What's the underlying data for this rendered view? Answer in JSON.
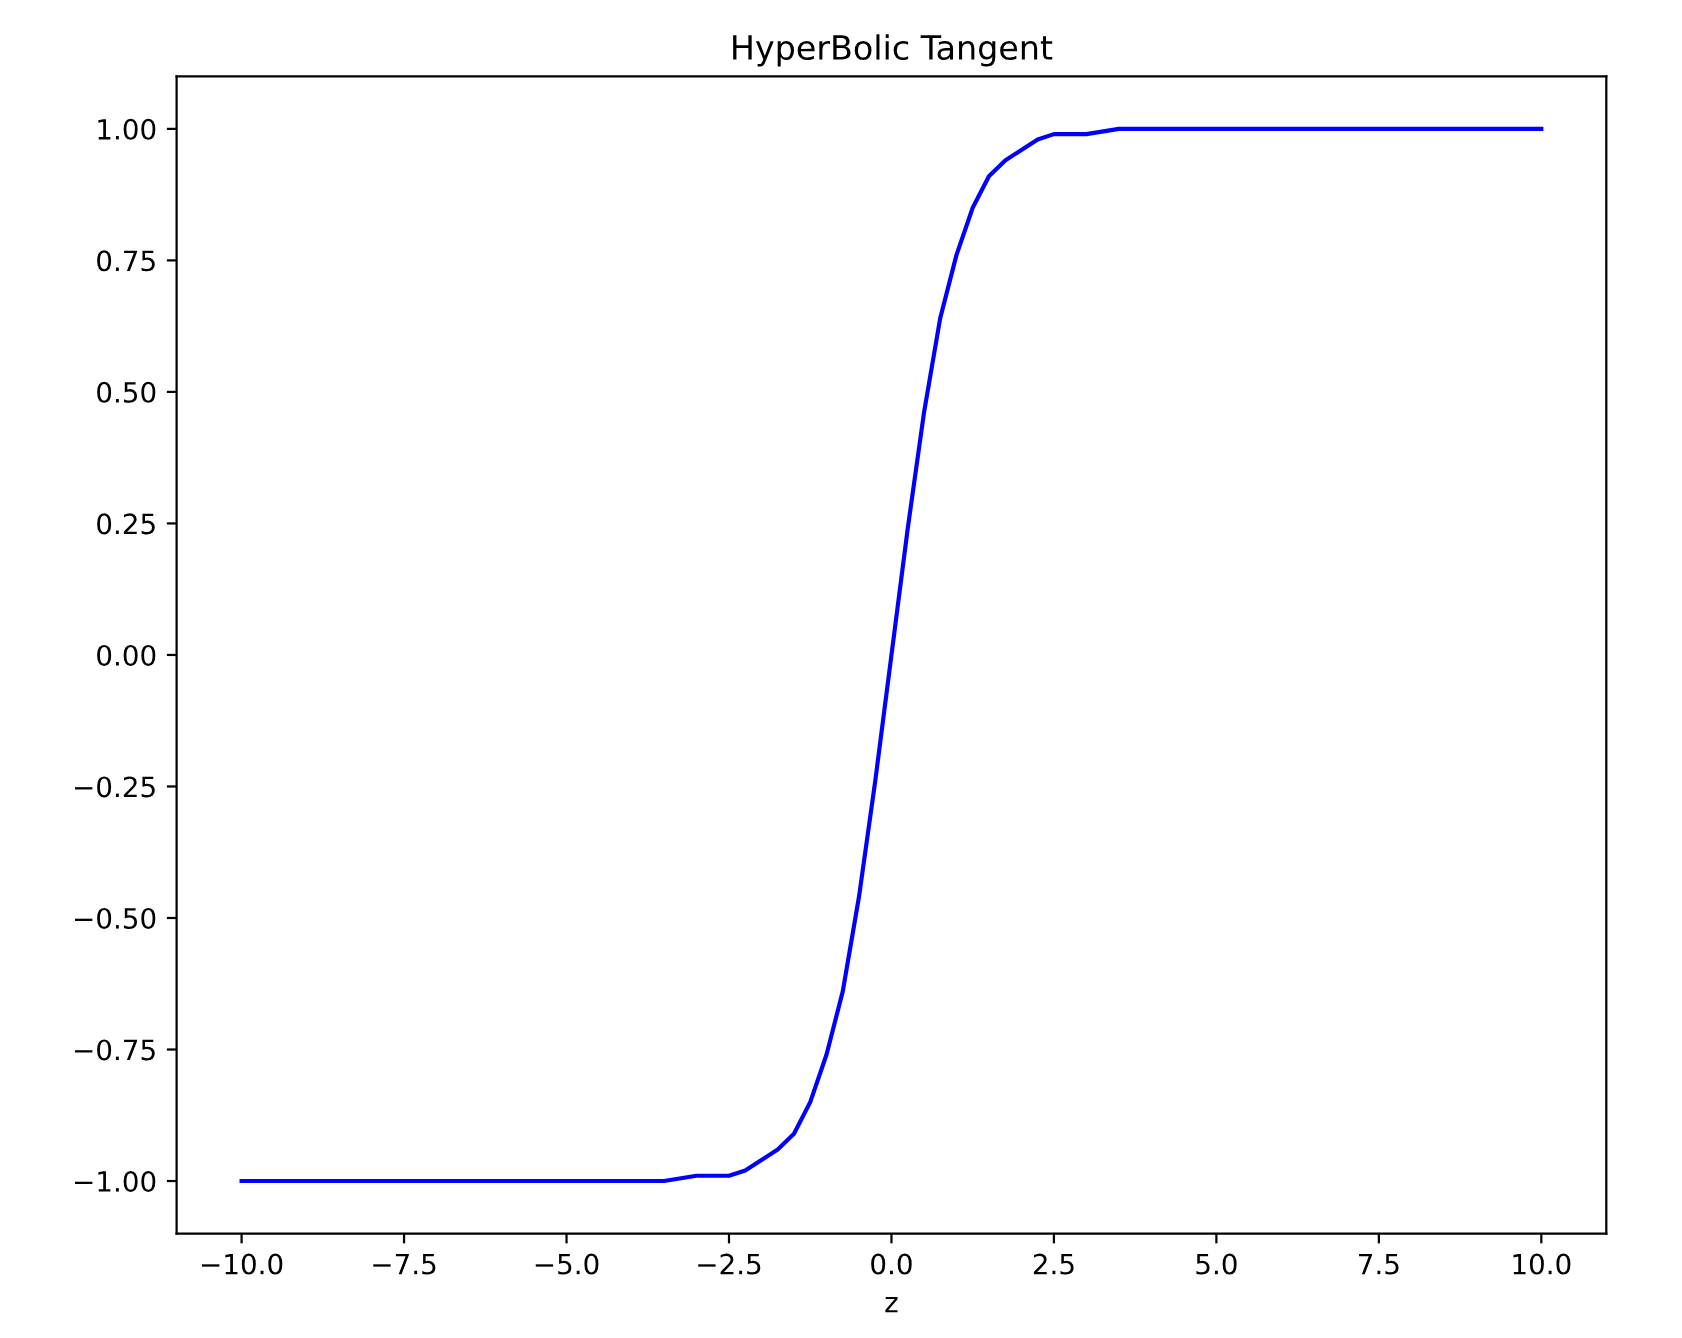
{
  "chart_data": {
    "type": "line",
    "title": "HyperBolic Tangent",
    "xlabel": "z",
    "series": [
      {
        "color": "#0000ff",
        "x": [
          -10,
          -8,
          -6,
          -5,
          -4,
          -3.5,
          -3,
          -2.5,
          -2.25,
          -2,
          -1.75,
          -1.5,
          -1.25,
          -1,
          -0.75,
          -0.5,
          -0.25,
          0,
          0.25,
          0.5,
          0.75,
          1,
          1.25,
          1.5,
          1.75,
          2,
          2.25,
          2.5,
          3,
          3.5,
          4,
          5,
          6,
          8,
          10
        ],
        "values": [
          -1.0,
          -1.0,
          -1.0,
          -1.0,
          -1.0,
          -1.0,
          -0.99,
          -0.99,
          -0.98,
          -0.96,
          -0.94,
          -0.91,
          -0.85,
          -0.76,
          -0.64,
          -0.46,
          -0.24,
          0.0,
          0.24,
          0.46,
          0.64,
          0.76,
          0.85,
          0.91,
          0.94,
          0.96,
          0.98,
          0.99,
          0.99,
          1.0,
          1.0,
          1.0,
          1.0,
          1.0,
          1.0
        ]
      }
    ],
    "xlim": [
      -11,
      11
    ],
    "ylim": [
      -1.1,
      1.1
    ],
    "xticks": [
      {
        "value": -10,
        "label": "−10.0"
      },
      {
        "value": -7.5,
        "label": "−7.5"
      },
      {
        "value": -5,
        "label": "−5.0"
      },
      {
        "value": -2.5,
        "label": "−2.5"
      },
      {
        "value": 0,
        "label": "0.0"
      },
      {
        "value": 2.5,
        "label": "2.5"
      },
      {
        "value": 5,
        "label": "5.0"
      },
      {
        "value": 7.5,
        "label": "7.5"
      },
      {
        "value": 10,
        "label": "10.0"
      }
    ],
    "yticks": [
      {
        "value": -1,
        "label": "−1.00"
      },
      {
        "value": -0.75,
        "label": "−0.75"
      },
      {
        "value": -0.5,
        "label": "−0.50"
      },
      {
        "value": -0.25,
        "label": "−0.25"
      },
      {
        "value": 0,
        "label": "0.00"
      },
      {
        "value": 0.25,
        "label": "0.25"
      },
      {
        "value": 0.5,
        "label": "0.50"
      },
      {
        "value": 0.75,
        "label": "0.75"
      },
      {
        "value": 1,
        "label": "1.00"
      }
    ],
    "grid": false,
    "legend": false,
    "marker": "none",
    "line_style": "solid"
  }
}
